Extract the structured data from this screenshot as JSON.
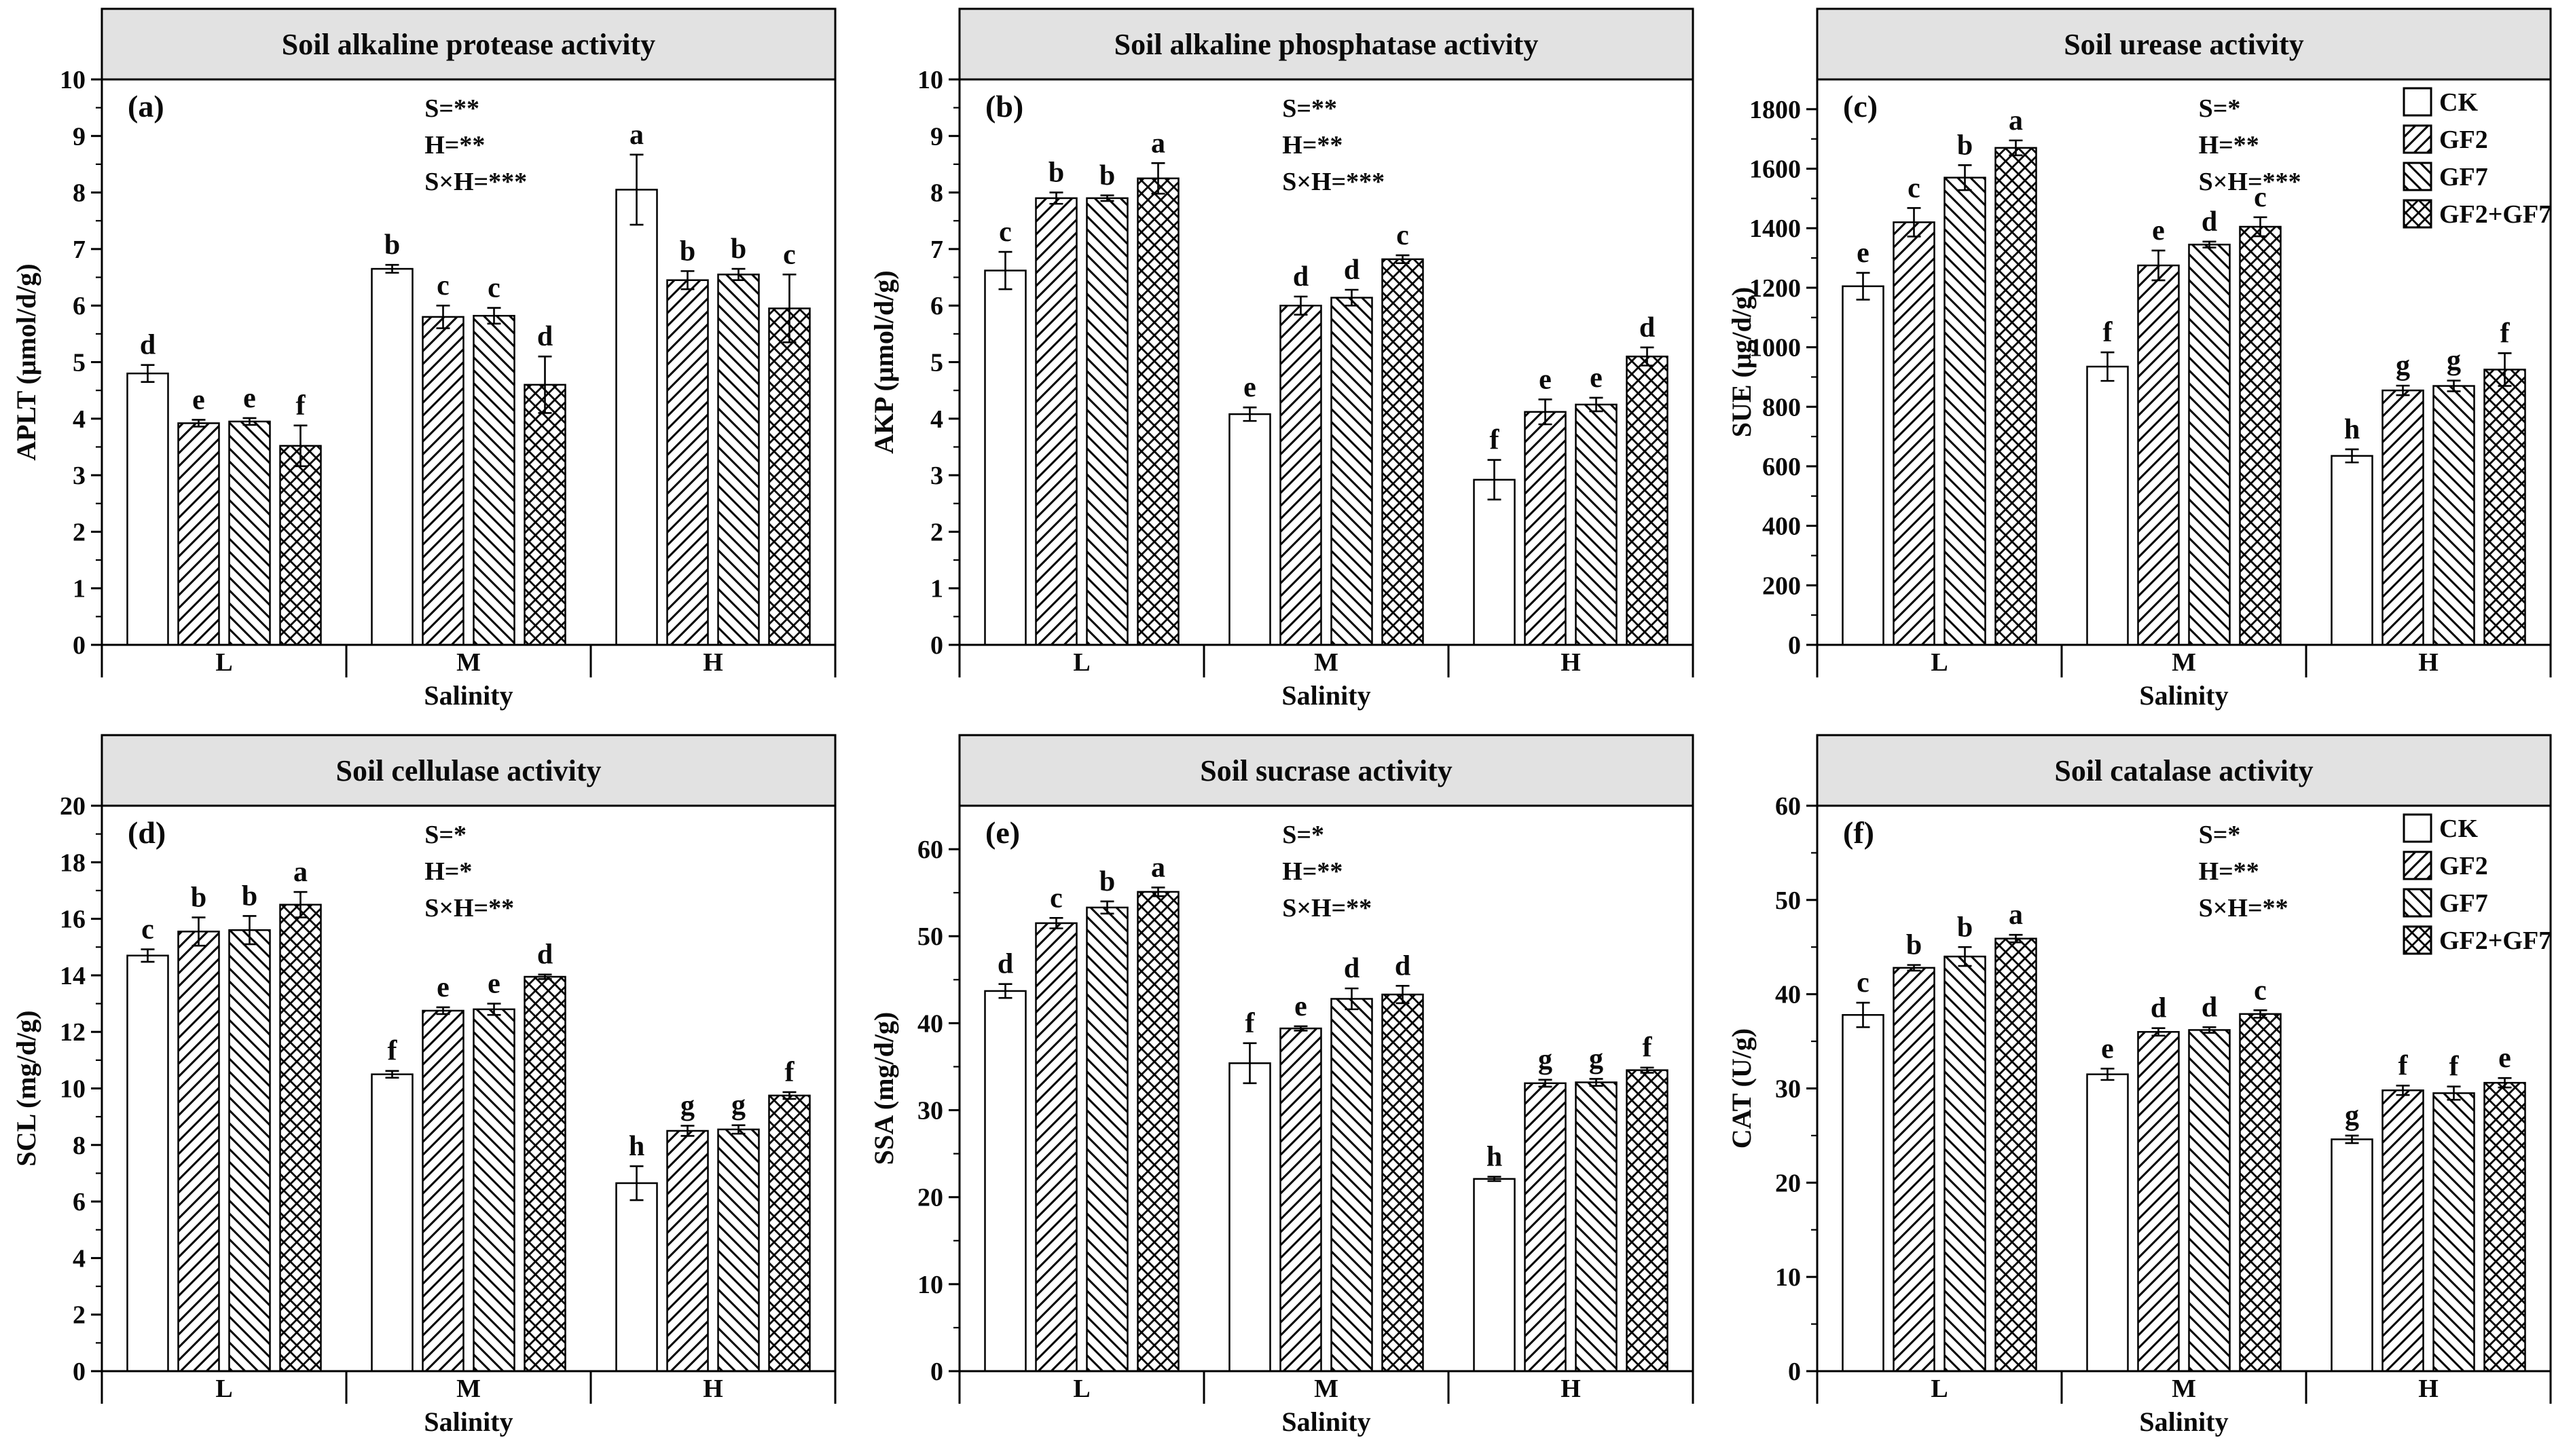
{
  "figure": {
    "categories": [
      "L",
      "M",
      "H"
    ],
    "xlabel": "Salinity",
    "treatments": [
      {
        "name": "CK",
        "pattern": "plain"
      },
      {
        "name": "GF2",
        "pattern": "diag-up"
      },
      {
        "name": "GF7",
        "pattern": "diag-down"
      },
      {
        "name": "GF2+GF7",
        "pattern": "crosshatch"
      }
    ],
    "colors": {
      "band_fill": "#e2e2e2",
      "line": "#000000",
      "bar_fill": "#ffffff"
    }
  },
  "chart_data": [
    {
      "panel": "(a)",
      "type": "bar",
      "title": "Soil alkaline protease activity",
      "ylabel": "APLT (μmol/d/g)",
      "xlabel": "Salinity",
      "categories": [
        "L",
        "M",
        "H"
      ],
      "ylim": [
        0,
        10
      ],
      "ytick_step": 1,
      "ytick_max": 10,
      "minor_step": 0.5,
      "stats": [
        "S=**",
        "H=**",
        "S×H=***"
      ],
      "show_legend": false,
      "series": [
        {
          "name": "CK",
          "pattern": "plain",
          "values": [
            4.8,
            6.65,
            8.05
          ],
          "errors": [
            0.15,
            0.07,
            0.62
          ],
          "letters": [
            "d",
            "b",
            "a"
          ]
        },
        {
          "name": "GF2",
          "pattern": "diag-up",
          "values": [
            3.92,
            5.8,
            6.45
          ],
          "errors": [
            0.06,
            0.2,
            0.16
          ],
          "letters": [
            "e",
            "c",
            "b"
          ]
        },
        {
          "name": "GF7",
          "pattern": "diag-down",
          "values": [
            3.95,
            5.82,
            6.55
          ],
          "errors": [
            0.06,
            0.14,
            0.1
          ],
          "letters": [
            "e",
            "c",
            "b"
          ]
        },
        {
          "name": "GF2+GF7",
          "pattern": "crosshatch",
          "values": [
            3.52,
            4.6,
            5.95
          ],
          "errors": [
            0.36,
            0.5,
            0.6
          ],
          "letters": [
            "f",
            "d",
            "c"
          ]
        }
      ]
    },
    {
      "panel": "(b)",
      "type": "bar",
      "title": "Soil alkaline phosphatase activity",
      "ylabel": "AKP (μmol/d/g)",
      "xlabel": "Salinity",
      "categories": [
        "L",
        "M",
        "H"
      ],
      "ylim": [
        0,
        10
      ],
      "ytick_step": 1,
      "ytick_max": 10,
      "minor_step": 0.5,
      "stats": [
        "S=**",
        "H=**",
        "S×H=***"
      ],
      "show_legend": false,
      "series": [
        {
          "name": "CK",
          "pattern": "plain",
          "values": [
            6.62,
            4.08,
            2.92
          ],
          "errors": [
            0.33,
            0.12,
            0.35
          ],
          "letters": [
            "c",
            "e",
            "f"
          ]
        },
        {
          "name": "GF2",
          "pattern": "diag-up",
          "values": [
            7.9,
            6.0,
            4.12
          ],
          "errors": [
            0.1,
            0.16,
            0.22
          ],
          "letters": [
            "b",
            "d",
            "e"
          ]
        },
        {
          "name": "GF7",
          "pattern": "diag-down",
          "values": [
            7.9,
            6.14,
            4.25
          ],
          "errors": [
            0.05,
            0.14,
            0.12
          ],
          "letters": [
            "b",
            "d",
            "e"
          ]
        },
        {
          "name": "GF2+GF7",
          "pattern": "crosshatch",
          "values": [
            8.25,
            6.82,
            5.1
          ],
          "errors": [
            0.27,
            0.07,
            0.16
          ],
          "letters": [
            "a",
            "c",
            "d"
          ]
        }
      ]
    },
    {
      "panel": "(c)",
      "type": "bar",
      "title": "Soil urease activity",
      "ylabel": "SUE (μg/d/g)",
      "xlabel": "Salinity",
      "categories": [
        "L",
        "M",
        "H"
      ],
      "ylim": [
        0,
        1900
      ],
      "ytick_step": 200,
      "ytick_max": 1800,
      "minor_step": 100,
      "stats": [
        "S=*",
        "H=**",
        "S×H=***"
      ],
      "show_legend": true,
      "series": [
        {
          "name": "CK",
          "pattern": "plain",
          "values": [
            1205,
            935,
            635
          ],
          "errors": [
            45,
            48,
            22
          ],
          "letters": [
            "e",
            "f",
            "h"
          ]
        },
        {
          "name": "GF2",
          "pattern": "diag-up",
          "values": [
            1420,
            1275,
            855
          ],
          "errors": [
            48,
            50,
            16
          ],
          "letters": [
            "c",
            "e",
            "g"
          ]
        },
        {
          "name": "GF7",
          "pattern": "diag-down",
          "values": [
            1570,
            1345,
            870
          ],
          "errors": [
            42,
            10,
            18
          ],
          "letters": [
            "b",
            "d",
            "g"
          ]
        },
        {
          "name": "GF2+GF7",
          "pattern": "crosshatch",
          "values": [
            1670,
            1405,
            925
          ],
          "errors": [
            25,
            32,
            55
          ],
          "letters": [
            "a",
            "c",
            "f"
          ]
        }
      ]
    },
    {
      "panel": "(d)",
      "type": "bar",
      "title": "Soil cellulase activity",
      "ylabel": "SCL (mg/d/g)",
      "xlabel": "Salinity",
      "categories": [
        "L",
        "M",
        "H"
      ],
      "ylim": [
        0,
        20
      ],
      "ytick_step": 2,
      "ytick_max": 20,
      "minor_step": 1,
      "stats": [
        "S=*",
        "H=*",
        "S×H=**"
      ],
      "show_legend": false,
      "series": [
        {
          "name": "CK",
          "pattern": "plain",
          "values": [
            14.7,
            10.5,
            6.65
          ],
          "errors": [
            0.22,
            0.12,
            0.6
          ],
          "letters": [
            "c",
            "f",
            "h"
          ]
        },
        {
          "name": "GF2",
          "pattern": "diag-up",
          "values": [
            15.55,
            12.75,
            8.5
          ],
          "errors": [
            0.5,
            0.12,
            0.18
          ],
          "letters": [
            "b",
            "e",
            "g"
          ]
        },
        {
          "name": "GF7",
          "pattern": "diag-down",
          "values": [
            15.6,
            12.8,
            8.55
          ],
          "errors": [
            0.5,
            0.2,
            0.15
          ],
          "letters": [
            "b",
            "e",
            "g"
          ]
        },
        {
          "name": "GF2+GF7",
          "pattern": "crosshatch",
          "values": [
            16.5,
            13.95,
            9.75
          ],
          "errors": [
            0.45,
            0.08,
            0.12
          ],
          "letters": [
            "a",
            "d",
            "f"
          ]
        }
      ]
    },
    {
      "panel": "(e)",
      "type": "bar",
      "title": "Soil sucrase activity",
      "ylabel": "SSA (mg/d/g)",
      "xlabel": "Salinity",
      "categories": [
        "L",
        "M",
        "H"
      ],
      "ylim": [
        0,
        65
      ],
      "ytick_step": 10,
      "ytick_max": 60,
      "minor_step": 5,
      "stats": [
        "S=*",
        "H=**",
        "S×H=**"
      ],
      "show_legend": false,
      "series": [
        {
          "name": "CK",
          "pattern": "plain",
          "values": [
            43.7,
            35.4,
            22.1
          ],
          "errors": [
            0.8,
            2.3,
            0.25
          ],
          "letters": [
            "d",
            "f",
            "h"
          ]
        },
        {
          "name": "GF2",
          "pattern": "diag-up",
          "values": [
            51.5,
            39.4,
            33.1
          ],
          "errors": [
            0.6,
            0.25,
            0.4
          ],
          "letters": [
            "c",
            "e",
            "g"
          ]
        },
        {
          "name": "GF7",
          "pattern": "diag-down",
          "values": [
            53.3,
            42.8,
            33.2
          ],
          "errors": [
            0.7,
            1.2,
            0.4
          ],
          "letters": [
            "b",
            "d",
            "g"
          ]
        },
        {
          "name": "GF2+GF7",
          "pattern": "crosshatch",
          "values": [
            55.1,
            43.3,
            34.6
          ],
          "errors": [
            0.5,
            1.0,
            0.3
          ],
          "letters": [
            "a",
            "d",
            "f"
          ]
        }
      ]
    },
    {
      "panel": "(f)",
      "type": "bar",
      "title": "Soil catalase activity",
      "ylabel": "CAT (U/g)",
      "xlabel": "Salinity",
      "categories": [
        "L",
        "M",
        "H"
      ],
      "ylim": [
        0,
        60
      ],
      "ytick_step": 10,
      "ytick_max": 60,
      "minor_step": 5,
      "stats": [
        "S=*",
        "H=**",
        "S×H=**"
      ],
      "show_legend": true,
      "series": [
        {
          "name": "CK",
          "pattern": "plain",
          "values": [
            37.8,
            31.5,
            24.6
          ],
          "errors": [
            1.3,
            0.6,
            0.4
          ],
          "letters": [
            "c",
            "e",
            "g"
          ]
        },
        {
          "name": "GF2",
          "pattern": "diag-up",
          "values": [
            42.8,
            36.0,
            29.8
          ],
          "errors": [
            0.3,
            0.4,
            0.5
          ],
          "letters": [
            "b",
            "d",
            "f"
          ]
        },
        {
          "name": "GF7",
          "pattern": "diag-down",
          "values": [
            44.0,
            36.2,
            29.5
          ],
          "errors": [
            1.0,
            0.3,
            0.7
          ],
          "letters": [
            "b",
            "d",
            "f"
          ]
        },
        {
          "name": "GF2+GF7",
          "pattern": "crosshatch",
          "values": [
            45.9,
            37.9,
            30.6
          ],
          "errors": [
            0.4,
            0.4,
            0.5
          ],
          "letters": [
            "a",
            "c",
            "e"
          ]
        }
      ]
    }
  ]
}
